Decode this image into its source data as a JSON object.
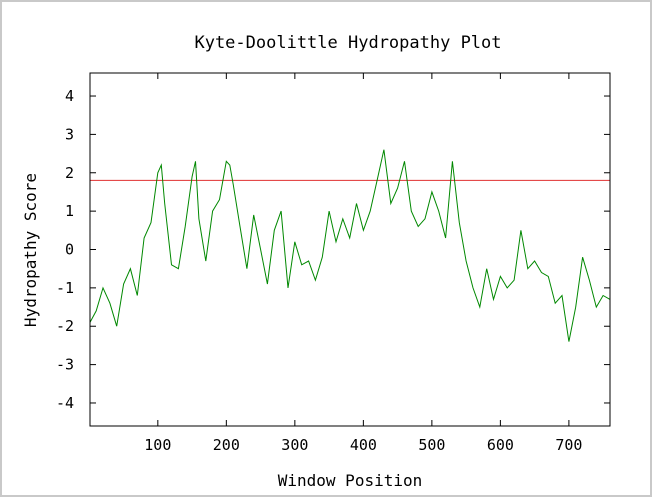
{
  "chart_data": {
    "type": "line",
    "title": "Kyte-Doolittle Hydropathy Plot",
    "xlabel": "Window Position",
    "ylabel": "Hydropathy Score",
    "xlim": [
      1,
      760
    ],
    "ylim": [
      -4.6,
      4.6
    ],
    "xticks": [
      100,
      200,
      300,
      400,
      500,
      600,
      700
    ],
    "yticks": [
      4,
      3,
      2,
      1,
      0,
      -1,
      -2,
      -3,
      -4
    ],
    "grid": false,
    "colors": {
      "series": "#008800",
      "threshold": "#e03030",
      "axis": "#000000",
      "frame": "#c9c9c9"
    },
    "threshold": {
      "y": 1.8
    },
    "series": [
      {
        "x": [
          1,
          10,
          20,
          30,
          40,
          50,
          60,
          70,
          80,
          90,
          100,
          105,
          110,
          120,
          130,
          140,
          150,
          155,
          160,
          170,
          180,
          190,
          200,
          205,
          210,
          220,
          230,
          240,
          250,
          260,
          270,
          280,
          290,
          300,
          310,
          320,
          330,
          340,
          350,
          360,
          370,
          380,
          390,
          400,
          410,
          420,
          430,
          440,
          450,
          460,
          470,
          480,
          490,
          500,
          510,
          520,
          530,
          540,
          550,
          560,
          570,
          580,
          590,
          600,
          610,
          620,
          630,
          640,
          650,
          660,
          670,
          680,
          690,
          700,
          710,
          720,
          730,
          740,
          750,
          760
        ],
        "y": [
          -1.9,
          -1.6,
          -1.0,
          -1.4,
          -2.0,
          -0.9,
          -0.5,
          -1.2,
          0.3,
          0.7,
          2.0,
          2.2,
          1.2,
          -0.4,
          -0.5,
          0.6,
          1.9,
          2.3,
          0.8,
          -0.3,
          1.0,
          1.3,
          2.3,
          2.2,
          1.7,
          0.6,
          -0.5,
          0.9,
          0.0,
          -0.9,
          0.5,
          1.0,
          -1.0,
          0.2,
          -0.4,
          -0.3,
          -0.8,
          -0.2,
          1.0,
          0.2,
          0.8,
          0.3,
          1.2,
          0.5,
          1.0,
          1.8,
          2.6,
          1.2,
          1.6,
          2.3,
          1.0,
          0.6,
          0.8,
          1.5,
          1.0,
          0.3,
          2.3,
          0.7,
          -0.3,
          -1.0,
          -1.5,
          -0.5,
          -1.3,
          -0.7,
          -1.0,
          -0.8,
          0.5,
          -0.5,
          -0.3,
          -0.6,
          -0.7,
          -1.4,
          -1.2,
          -2.4,
          -1.5,
          -0.2,
          -0.8,
          -1.5,
          -1.2,
          -1.3
        ]
      }
    ]
  }
}
